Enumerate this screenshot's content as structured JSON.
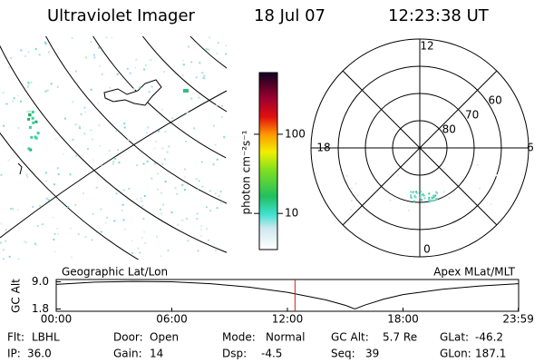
{
  "header": {
    "title": "Ultraviolet Imager",
    "date": "18 Jul 07",
    "time": "12:23:38 UT"
  },
  "colorbar": {
    "label": "photon cm⁻²s⁻¹",
    "log": true,
    "lim": [
      3.5,
      600
    ],
    "ticks": [
      10,
      100
    ]
  },
  "polar": {
    "mlt_labels": [
      12,
      18,
      6,
      0
    ],
    "lat_lim": [
      50,
      90
    ],
    "lat_ticks": [
      60,
      70,
      80
    ]
  },
  "map_labels": {
    "left": "Geographic Lat/Lon",
    "right": "Apex MLat/MLT"
  },
  "chart_data": {
    "type": "line",
    "ylabel": "GC Alt",
    "color": "#000000",
    "marker_color": "#cc2222",
    "x": [
      0,
      2,
      4,
      6,
      8,
      10,
      12,
      14,
      15,
      15.5,
      16,
      17,
      18,
      20,
      22,
      24
    ],
    "values": [
      8.3,
      8.9,
      9.1,
      9.0,
      8.5,
      7.6,
      6.2,
      4.2,
      2.8,
      1.8,
      2.8,
      4.4,
      5.6,
      7.0,
      7.9,
      8.5
    ],
    "xlim": [
      0,
      24
    ],
    "xticks": [
      {
        "value": 0,
        "label": "00:00"
      },
      {
        "value": 6,
        "label": "06:00"
      },
      {
        "value": 12,
        "label": "12:00"
      },
      {
        "value": 18,
        "label": "18:00"
      },
      {
        "value": 23.983,
        "label": "23:59"
      }
    ],
    "ylim": [
      1.2,
      9.6
    ],
    "yticks": [
      {
        "value": 9,
        "label": "9.0"
      },
      {
        "value": 1.8,
        "label": "1.8"
      }
    ],
    "marker_x": 12.394
  },
  "footer": [
    [
      {
        "label": "Flt:",
        "value": "LBHL"
      },
      {
        "label": "Door:",
        "value": "Open"
      },
      {
        "label": "Mode:",
        "value": "Normal"
      },
      {
        "label": "GC Alt:",
        "value": "5.7 Re"
      },
      {
        "label": "GLat:",
        "value": "-46.2"
      }
    ],
    [
      {
        "label": "IP:",
        "value": "36.0"
      },
      {
        "label": "Gain:",
        "value": "14"
      },
      {
        "label": "Dsp:",
        "value": "-4.5"
      },
      {
        "label": "Seq:",
        "value": "39"
      },
      {
        "label": "GLon:",
        "value": "187.1"
      }
    ]
  ]
}
